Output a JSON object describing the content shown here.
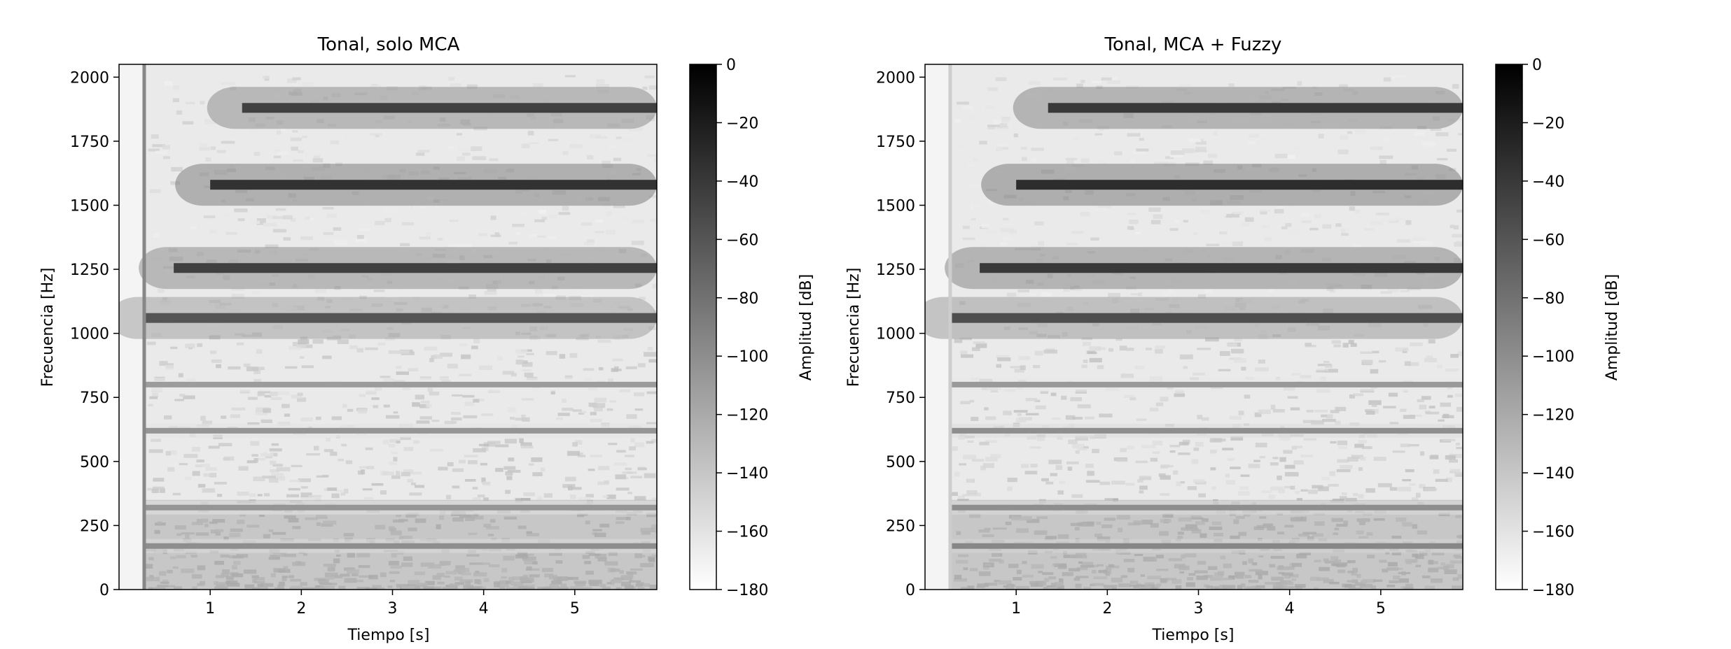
{
  "chart_data": [
    {
      "type": "heatmap",
      "title": "Tonal, solo MCA",
      "xlabel": "Tiempo [s]",
      "ylabel": "Frecuencia [Hz]",
      "xlim": [
        0,
        5.9
      ],
      "ylim": [
        0,
        2050
      ],
      "xticks": [
        1,
        2,
        3,
        4,
        5
      ],
      "yticks": [
        0,
        250,
        500,
        750,
        1000,
        1250,
        1500,
        1750,
        2000
      ],
      "colormap": "gray_r",
      "colorbar": {
        "label": "Amplitud [dB]",
        "range": [
          -180,
          0
        ],
        "ticks": [
          0,
          -20,
          -40,
          -60,
          -80,
          -100,
          -120,
          -140,
          -160,
          -180
        ]
      },
      "signal_onset_s": 0.28,
      "harmonics": [
        {
          "freq_hz": 1060,
          "start_s": 0.28,
          "level_db": -60
        },
        {
          "freq_hz": 1255,
          "start_s": 0.6,
          "level_db": -45
        },
        {
          "freq_hz": 1580,
          "start_s": 1.0,
          "level_db": -35
        },
        {
          "freq_hz": 1880,
          "start_s": 1.35,
          "level_db": -45
        },
        {
          "freq_hz": 620,
          "start_s": 0.28,
          "level_db": -105
        },
        {
          "freq_hz": 800,
          "start_s": 0.28,
          "level_db": -110
        },
        {
          "freq_hz": 320,
          "start_s": 0.28,
          "level_db": -105
        },
        {
          "freq_hz": 170,
          "start_s": 0.28,
          "level_db": -100
        }
      ]
    },
    {
      "type": "heatmap",
      "title": "Tonal, MCA + Fuzzy",
      "xlabel": "Tiempo [s]",
      "ylabel": "Frecuencia [Hz]",
      "xlim": [
        0,
        5.9
      ],
      "ylim": [
        0,
        2050
      ],
      "xticks": [
        1,
        2,
        3,
        4,
        5
      ],
      "yticks": [
        0,
        250,
        500,
        750,
        1000,
        1250,
        1500,
        1750,
        2000
      ],
      "colormap": "gray_r",
      "colorbar": {
        "label": "Amplitud [dB]",
        "range": [
          -180,
          0
        ],
        "ticks": [
          0,
          -20,
          -40,
          -60,
          -80,
          -100,
          -120,
          -140,
          -160,
          -180
        ]
      },
      "signal_onset_s": 0.28,
      "harmonics": [
        {
          "freq_hz": 1060,
          "start_s": 0.28,
          "level_db": -55
        },
        {
          "freq_hz": 1255,
          "start_s": 0.6,
          "level_db": -40
        },
        {
          "freq_hz": 1580,
          "start_s": 1.0,
          "level_db": -32
        },
        {
          "freq_hz": 1880,
          "start_s": 1.35,
          "level_db": -40
        },
        {
          "freq_hz": 620,
          "start_s": 0.28,
          "level_db": -100
        },
        {
          "freq_hz": 800,
          "start_s": 0.28,
          "level_db": -108
        },
        {
          "freq_hz": 320,
          "start_s": 0.28,
          "level_db": -100
        },
        {
          "freq_hz": 170,
          "start_s": 0.28,
          "level_db": -95
        }
      ]
    }
  ]
}
